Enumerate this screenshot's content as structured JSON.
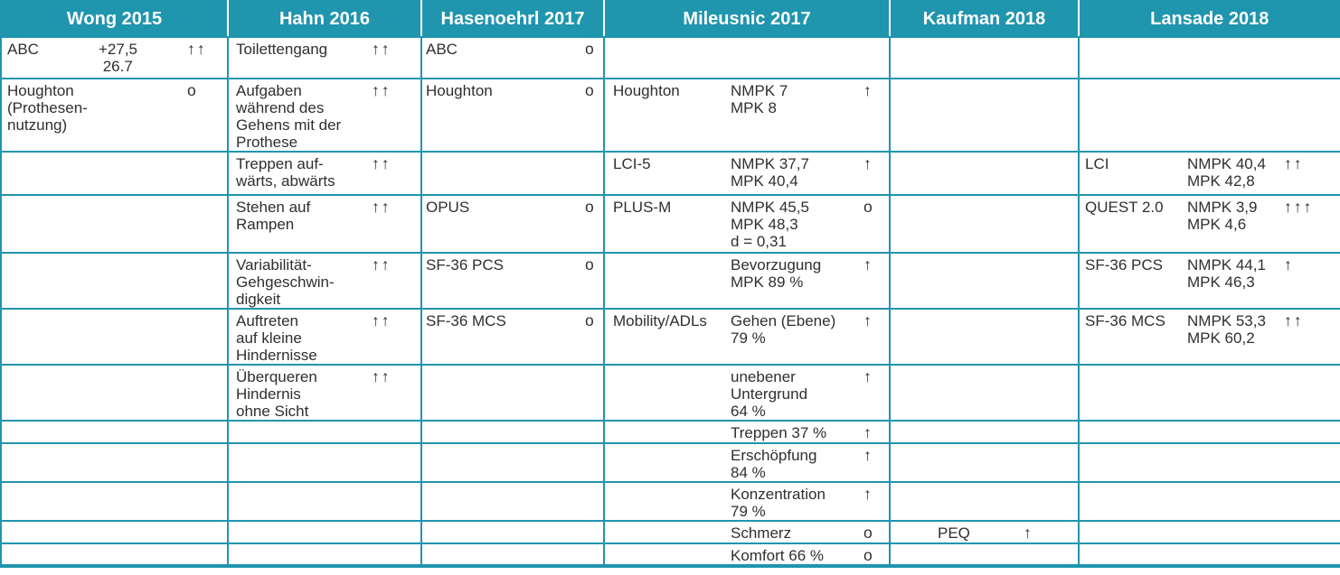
{
  "colors": {
    "header_bg": "#2095ae",
    "header_text": "#ffffff",
    "grid_border": "#2095ae",
    "body_text": "#2f2f2f"
  },
  "header": {
    "columns": [
      "Wong 2015",
      "Hahn 2016",
      "Hasenoehrl 2017",
      "Mileusnic 2017",
      "Kaufman 2018",
      "Lansade 2018"
    ]
  },
  "rows": [
    {
      "cells": [
        {
          "name": "ABC",
          "value": "+27,5\n 26.7",
          "symbol": "↑↑"
        },
        {
          "name": "Toilettengang",
          "symbol": "↑↑"
        },
        {
          "name": "ABC",
          "symbol": "o"
        },
        {},
        {},
        {}
      ]
    },
    {
      "cells": [
        {
          "name": "Houghton\n(Prothesen-\nnutzung)",
          "symbol": "o"
        },
        {
          "name": "Aufgaben\nwährend des\nGehens mit der\nProthese",
          "symbol": "↑↑"
        },
        {
          "name": "Houghton",
          "symbol": "o"
        },
        {
          "name": "Houghton",
          "value": "NMPK 7\nMPK 8",
          "symbol": "↑"
        },
        {},
        {}
      ]
    },
    {
      "cells": [
        {},
        {
          "name": "Treppen auf-\nwärts, abwärts",
          "symbol": "↑↑"
        },
        {},
        {
          "name": "LCI-5",
          "value": "NMPK 37,7\nMPK 40,4",
          "symbol": "↑"
        },
        {},
        {
          "name": "LCI",
          "value": "NMPK 40,4\nMPK 42,8",
          "symbol": "↑↑"
        }
      ]
    },
    {
      "cells": [
        {},
        {
          "name": "Stehen auf\nRampen",
          "symbol": "↑↑"
        },
        {
          "name": "OPUS",
          "symbol": "o"
        },
        {
          "name": "PLUS-M",
          "value": "NMPK 45,5\nMPK 48,3\nd = 0,31",
          "symbol": "o"
        },
        {},
        {
          "name": "QUEST 2.0",
          "value": "NMPK 3,9\nMPK 4,6",
          "symbol": "↑↑↑"
        }
      ]
    },
    {
      "cells": [
        {},
        {
          "name": "Variabilität-\nGehgeschwin-\ndigkeit",
          "symbol": "↑↑"
        },
        {
          "name": "SF-36 PCS",
          "symbol": "o"
        },
        {
          "value": "Bevorzugung\nMPK 89 %",
          "symbol": "↑"
        },
        {},
        {
          "name": "SF-36 PCS",
          "value": "NMPK 44,1\nMPK 46,3",
          "symbol": "↑"
        }
      ]
    },
    {
      "cells": [
        {},
        {
          "name": "Auftreten\nauf kleine\nHindernisse",
          "symbol": "↑↑"
        },
        {
          "name": "SF-36 MCS",
          "symbol": "o"
        },
        {
          "name": "Mobility/ADLs",
          "value": "Gehen (Ebene)\n79 %",
          "symbol": "↑"
        },
        {},
        {
          "name": "SF-36 MCS",
          "value": "NMPK 53,3\nMPK 60,2",
          "symbol": "↑↑"
        }
      ]
    },
    {
      "cells": [
        {},
        {
          "name": "Überqueren\nHindernis\nohne Sicht",
          "symbol": "↑↑"
        },
        {},
        {
          "value": "unebener\nUntergrund\n64 %",
          "symbol": "↑"
        },
        {},
        {}
      ]
    },
    {
      "cells": [
        {},
        {},
        {},
        {
          "value": "Treppen 37 %",
          "symbol": "↑"
        },
        {},
        {}
      ]
    },
    {
      "cells": [
        {},
        {},
        {},
        {
          "value": "Erschöpfung\n84 %",
          "symbol": "↑"
        },
        {},
        {}
      ]
    },
    {
      "cells": [
        {},
        {},
        {},
        {
          "value": "Konzentration\n79 %",
          "symbol": "↑"
        },
        {},
        {}
      ]
    },
    {
      "cells": [
        {},
        {},
        {},
        {
          "value": "Schmerz",
          "symbol": "o"
        },
        {
          "name": "PEQ",
          "symbol": "↑"
        },
        {}
      ]
    },
    {
      "cells": [
        {},
        {},
        {},
        {
          "value": "Komfort 66 %",
          "symbol": "o"
        },
        {},
        {}
      ]
    }
  ]
}
